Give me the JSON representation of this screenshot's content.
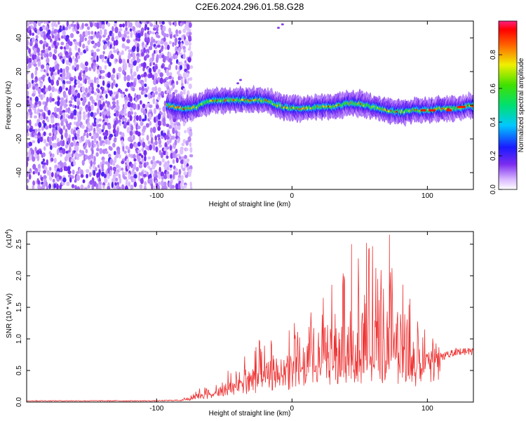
{
  "chart_data": [
    {
      "type": "heatmap",
      "title": "C2E6.2024.296.01.58.G28",
      "xlabel": "Height of straight line (km)",
      "ylabel": "Frequency (Hz)",
      "xlim": [
        -196,
        134
      ],
      "ylim": [
        -50,
        50
      ],
      "xticks": [
        -100,
        0,
        100
      ],
      "yticks": [
        40,
        20,
        0,
        -20,
        -40
      ],
      "grid": false,
      "noise_region_x": [
        -196,
        -78
      ],
      "ridge_center_hz": [
        [
          -92,
          0
        ],
        [
          -80,
          -2
        ],
        [
          -70,
          -1
        ],
        [
          -60,
          3
        ],
        [
          -50,
          3
        ],
        [
          -40,
          3
        ],
        [
          -30,
          3
        ],
        [
          -20,
          3
        ],
        [
          -10,
          0
        ],
        [
          0,
          -2
        ],
        [
          10,
          -2
        ],
        [
          20,
          -1
        ],
        [
          30,
          -1
        ],
        [
          40,
          1
        ],
        [
          50,
          1
        ],
        [
          60,
          -1
        ],
        [
          70,
          -3
        ],
        [
          80,
          -4
        ],
        [
          90,
          -3
        ],
        [
          100,
          -3
        ],
        [
          110,
          -2
        ],
        [
          120,
          -2
        ],
        [
          128,
          -1
        ],
        [
          134,
          0
        ]
      ],
      "colorbar": {
        "label": "Normalized spectral amplitude",
        "range": [
          0,
          1
        ],
        "ticks": [
          0.0,
          0.2,
          0.4,
          0.6,
          0.8
        ]
      }
    },
    {
      "type": "line",
      "xlabel": "Height of straight line (km)",
      "ylabel": "SNR (10 * v/v)",
      "multiplier_label": "(x10",
      "multiplier_exp": "4",
      "xlim": [
        -196,
        134
      ],
      "ylim": [
        0,
        2.7
      ],
      "xticks": [
        -100,
        0,
        100
      ],
      "yticks": [
        0.0,
        0.5,
        1.0,
        1.5,
        2.0,
        2.5
      ],
      "grid": false,
      "color": "#ee3333",
      "envelope": {
        "x": [
          -196,
          -100,
          -80,
          -75,
          -70,
          -65,
          -60,
          -55,
          -50,
          -45,
          -40,
          -35,
          -30,
          -25,
          -20,
          -15,
          -10,
          -5,
          0,
          5,
          10,
          15,
          20,
          25,
          30,
          35,
          40,
          45,
          50,
          55,
          60,
          65,
          70,
          75,
          80,
          85,
          90,
          95,
          100,
          105,
          110,
          115,
          120,
          125,
          134
        ],
        "base": [
          0.02,
          0.02,
          0.03,
          0.05,
          0.08,
          0.1,
          0.1,
          0.12,
          0.15,
          0.18,
          0.2,
          0.25,
          0.25,
          0.3,
          0.3,
          0.35,
          0.35,
          0.35,
          0.35,
          0.4,
          0.4,
          0.45,
          0.45,
          0.5,
          0.5,
          0.5,
          0.55,
          0.55,
          0.55,
          0.55,
          0.55,
          0.55,
          0.55,
          0.55,
          0.5,
          0.45,
          0.4,
          0.45,
          0.55,
          0.6,
          0.7,
          0.75,
          0.8,
          0.8,
          0.8
        ],
        "peak": [
          0.05,
          0.05,
          0.1,
          0.15,
          0.25,
          0.25,
          0.2,
          0.3,
          0.4,
          0.6,
          0.6,
          0.8,
          0.9,
          1.0,
          0.9,
          1.0,
          1.1,
          1.0,
          1.4,
          1.2,
          1.4,
          1.5,
          1.8,
          2.0,
          1.9,
          2.0,
          2.2,
          2.5,
          2.5,
          2.4,
          2.5,
          2.6,
          2.6,
          2.3,
          2.0,
          1.8,
          1.6,
          1.4,
          1.2,
          1.0,
          0.95,
          0.9,
          0.9,
          0.9,
          0.9
        ]
      },
      "highlighted_peaks": [
        {
          "x": 44,
          "y": 2.5
        },
        {
          "x": 55,
          "y": 2.52
        },
        {
          "x": 72,
          "y": 2.65
        }
      ]
    }
  ]
}
